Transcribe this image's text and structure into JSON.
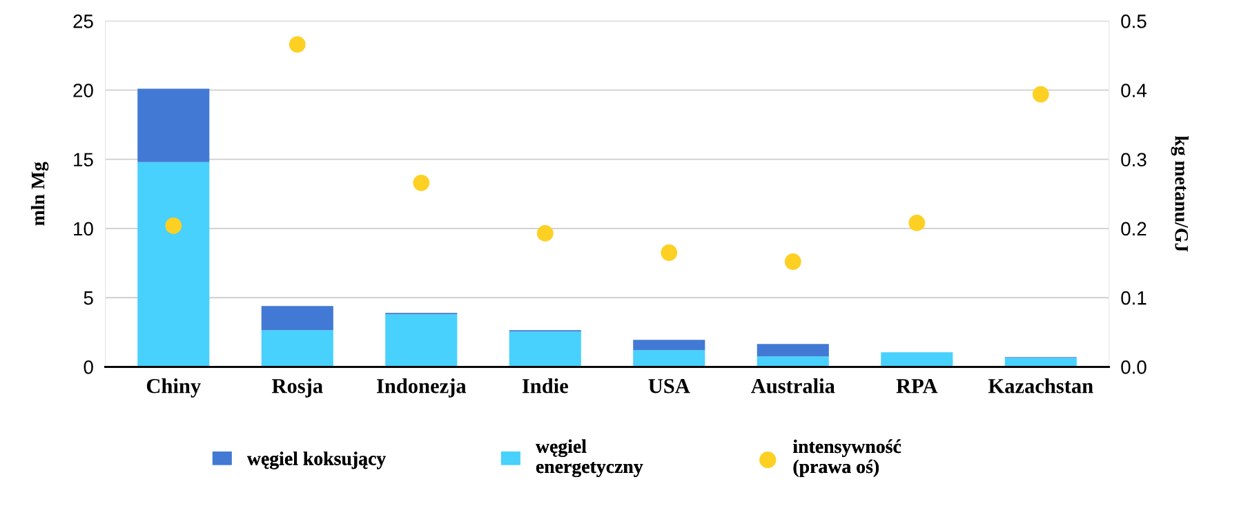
{
  "chart_data": {
    "type": "bar",
    "stacked": true,
    "categories": [
      "Chiny",
      "Rosja",
      "Indonezja",
      "Indie",
      "USA",
      "Australia",
      "RPA",
      "Kazachstan"
    ],
    "ylabel": "mln Mg",
    "y2label": "kg metanu/GJ",
    "ylim": [
      0,
      25
    ],
    "yticks": [
      0,
      5,
      10,
      15,
      20,
      25
    ],
    "y2lim": [
      0,
      0.5
    ],
    "y2ticks": [
      {
        "value": 0,
        "label": "0.0"
      },
      0.1,
      0.2,
      0.3,
      0.4,
      0.5
    ],
    "grid": "y",
    "legend": "bottom",
    "series": [
      {
        "name": "węgiel\nenergetyczny",
        "color": "#48d1fc",
        "values": [
          14.8,
          2.65,
          3.8,
          2.55,
          1.2,
          0.75,
          1.05,
          0.65
        ]
      },
      {
        "name": "węgiel koksujący",
        "color": "#4279d4",
        "values": [
          5.3,
          1.75,
          0.1,
          0.1,
          0.75,
          0.9,
          0,
          0.05
        ]
      },
      {
        "name": "intensywność\n(prawa oś)",
        "color": "#fdd023",
        "type": "scatter",
        "axis": "y2",
        "marker": "circle",
        "values": [
          0.204,
          0.466,
          0.266,
          0.193,
          0.165,
          0.152,
          0.208,
          0.394
        ]
      }
    ]
  }
}
